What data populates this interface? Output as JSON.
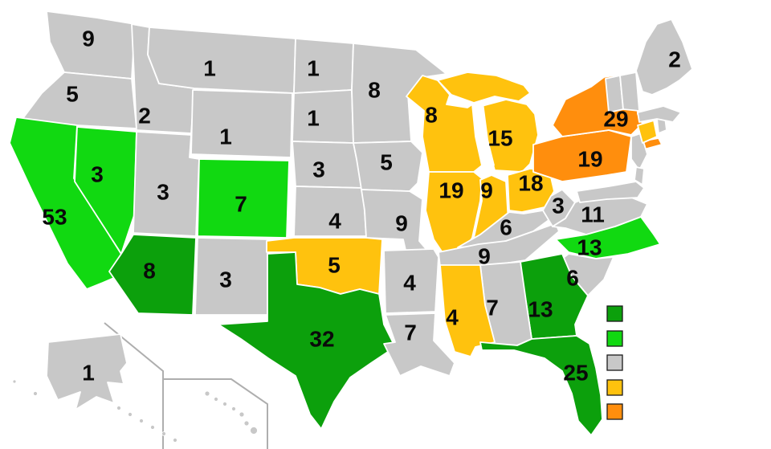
{
  "palette": {
    "gain_two_or_more": "#0CA00C",
    "gain_one": "#11D911",
    "no_change": "#C8C8C8",
    "lose_one": "#FFC20E",
    "lose_two": "#FF8E0D"
  },
  "map": {
    "states": [
      {
        "id": "WA",
        "name": "Washington",
        "label": "9",
        "category": "no_change"
      },
      {
        "id": "OR",
        "name": "Oregon",
        "label": "5",
        "category": "no_change"
      },
      {
        "id": "CA",
        "name": "California",
        "label": "53",
        "category": "gain_one"
      },
      {
        "id": "NV",
        "name": "Nevada",
        "label": "3",
        "category": "gain_one"
      },
      {
        "id": "ID",
        "name": "Idaho",
        "label": "2",
        "category": "no_change"
      },
      {
        "id": "MT",
        "name": "Montana",
        "label": "1",
        "category": "no_change"
      },
      {
        "id": "WY",
        "name": "Wyoming",
        "label": "1",
        "category": "no_change"
      },
      {
        "id": "UT",
        "name": "Utah",
        "label": "3",
        "category": "no_change"
      },
      {
        "id": "CO",
        "name": "Colorado",
        "label": "7",
        "category": "gain_one"
      },
      {
        "id": "AZ",
        "name": "Arizona",
        "label": "8",
        "category": "gain_two_or_more"
      },
      {
        "id": "NM",
        "name": "New Mexico",
        "label": "3",
        "category": "no_change"
      },
      {
        "id": "ND",
        "name": "North Dakota",
        "label": "1",
        "category": "no_change"
      },
      {
        "id": "SD",
        "name": "South Dakota",
        "label": "1",
        "category": "no_change"
      },
      {
        "id": "NE",
        "name": "Nebraska",
        "label": "3",
        "category": "no_change"
      },
      {
        "id": "KS",
        "name": "Kansas",
        "label": "4",
        "category": "no_change"
      },
      {
        "id": "OK",
        "name": "Oklahoma",
        "label": "5",
        "category": "lose_one"
      },
      {
        "id": "TX",
        "name": "Texas",
        "label": "32",
        "category": "gain_two_or_more"
      },
      {
        "id": "MN",
        "name": "Minnesota",
        "label": "8",
        "category": "no_change"
      },
      {
        "id": "IA",
        "name": "Iowa",
        "label": "5",
        "category": "no_change"
      },
      {
        "id": "MO",
        "name": "Missouri",
        "label": "9",
        "category": "no_change"
      },
      {
        "id": "AR",
        "name": "Arkansas",
        "label": "4",
        "category": "no_change"
      },
      {
        "id": "LA",
        "name": "Louisiana",
        "label": "7",
        "category": "no_change"
      },
      {
        "id": "WI",
        "name": "Wisconsin",
        "label": "8",
        "category": "lose_one"
      },
      {
        "id": "MI",
        "name": "Michigan",
        "label": "15",
        "category": "lose_one"
      },
      {
        "id": "IL",
        "name": "Illinois",
        "label": "19",
        "category": "lose_one"
      },
      {
        "id": "IN",
        "name": "Indiana",
        "label": "9",
        "category": "lose_one"
      },
      {
        "id": "OH",
        "name": "Ohio",
        "label": "18",
        "category": "lose_one"
      },
      {
        "id": "KY",
        "name": "Kentucky",
        "label": "6",
        "category": "no_change"
      },
      {
        "id": "TN",
        "name": "Tennessee",
        "label": "9",
        "category": "no_change"
      },
      {
        "id": "MS",
        "name": "Mississippi",
        "label": "4",
        "category": "lose_one"
      },
      {
        "id": "AL",
        "name": "Alabama",
        "label": "7",
        "category": "no_change"
      },
      {
        "id": "GA",
        "name": "Georgia",
        "label": "13",
        "category": "gain_two_or_more"
      },
      {
        "id": "FL",
        "name": "Florida",
        "label": "25",
        "category": "gain_two_or_more"
      },
      {
        "id": "SC",
        "name": "South Carolina",
        "label": "6",
        "category": "no_change"
      },
      {
        "id": "NC",
        "name": "North Carolina",
        "label": "13",
        "category": "gain_one"
      },
      {
        "id": "VA",
        "name": "Virginia",
        "label": "11",
        "category": "no_change"
      },
      {
        "id": "WV",
        "name": "West Virginia",
        "label": "3",
        "category": "no_change"
      },
      {
        "id": "PA",
        "name": "Pennsylvania",
        "label": "19",
        "category": "lose_two"
      },
      {
        "id": "NY",
        "name": "New York",
        "label": "29",
        "category": "lose_two"
      },
      {
        "id": "NJ",
        "name": "New Jersey",
        "label": "",
        "category": "no_change"
      },
      {
        "id": "MD",
        "name": "Maryland",
        "label": "",
        "category": "no_change"
      },
      {
        "id": "DE",
        "name": "Delaware",
        "label": "",
        "category": "no_change"
      },
      {
        "id": "CT",
        "name": "Connecticut",
        "label": "",
        "category": "lose_one"
      },
      {
        "id": "RI",
        "name": "Rhode Island",
        "label": "",
        "category": "no_change"
      },
      {
        "id": "MA",
        "name": "Massachusetts",
        "label": "",
        "category": "no_change"
      },
      {
        "id": "VT",
        "name": "Vermont",
        "label": "",
        "category": "no_change"
      },
      {
        "id": "NH",
        "name": "New Hampshire",
        "label": "",
        "category": "no_change"
      },
      {
        "id": "ME",
        "name": "Maine",
        "label": "2",
        "category": "no_change"
      },
      {
        "id": "AK",
        "name": "Alaska",
        "label": "1",
        "category": "no_change"
      },
      {
        "id": "HI",
        "name": "Hawaii",
        "label": "",
        "category": "no_change"
      }
    ]
  },
  "legend": {
    "order": [
      "gain_two_or_more",
      "gain_one",
      "no_change",
      "lose_one",
      "lose_two"
    ]
  }
}
